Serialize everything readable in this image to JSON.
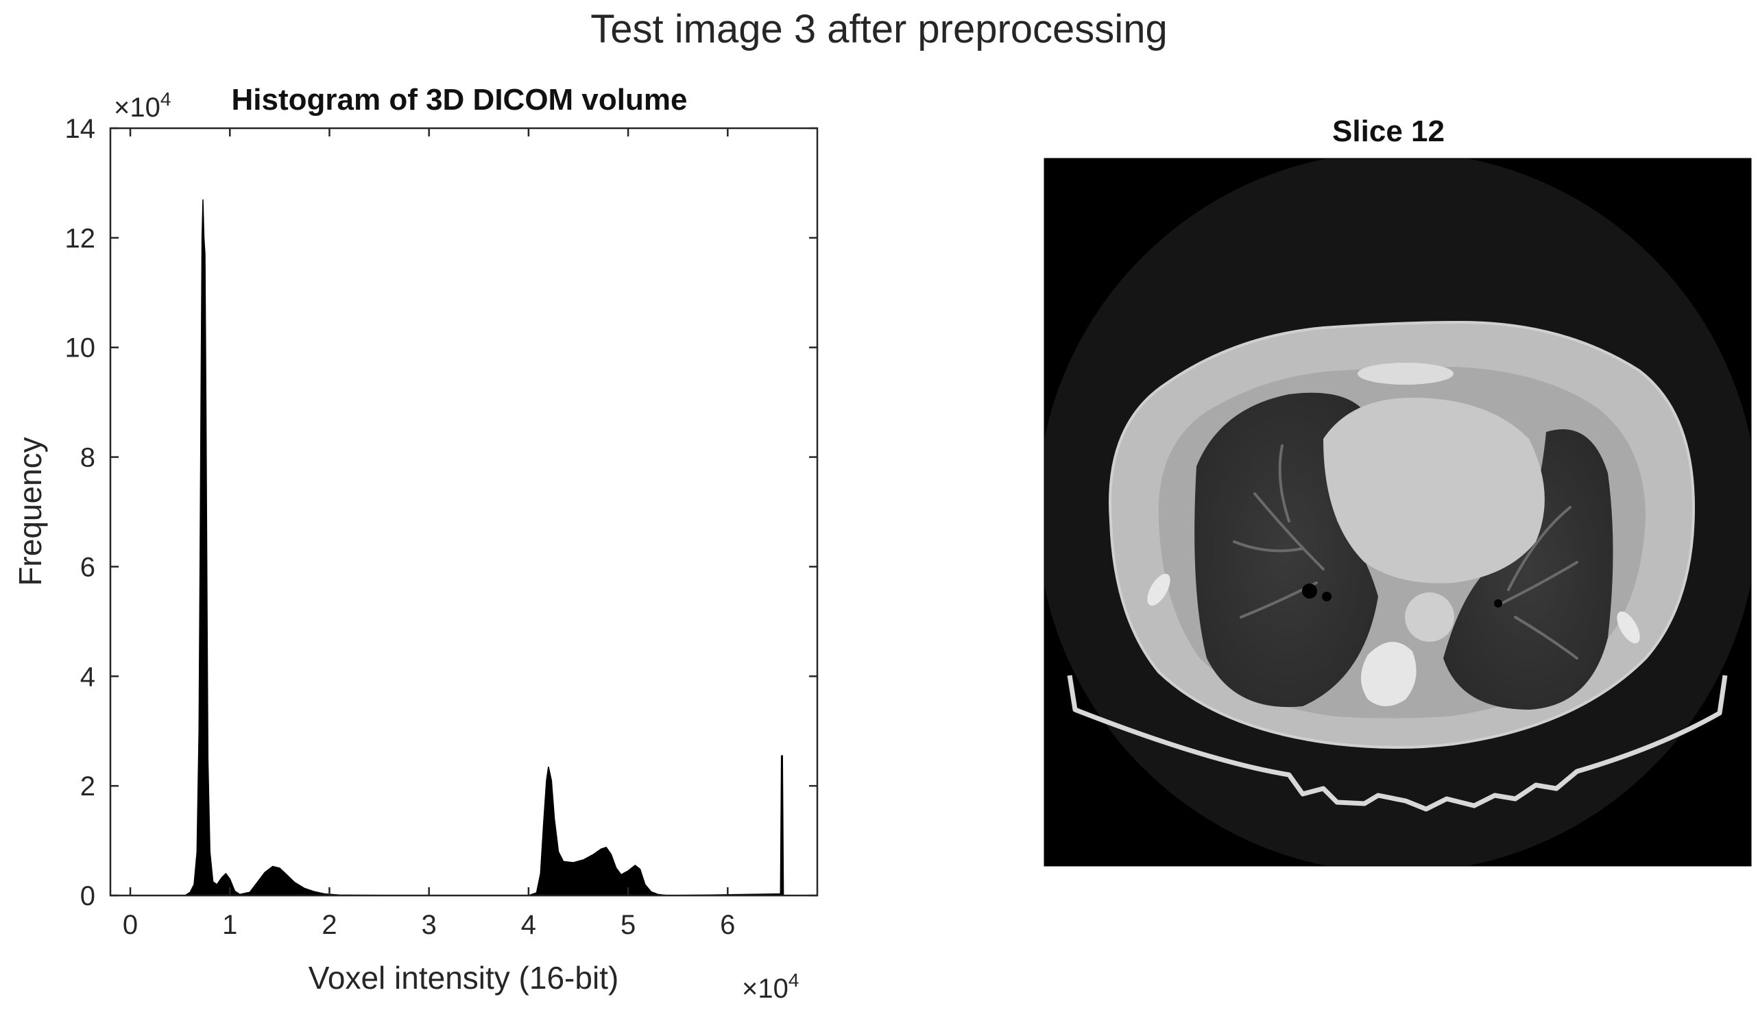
{
  "figure": {
    "suptitle": "Test image 3 after preprocessing"
  },
  "chart_data": [
    {
      "type": "bar",
      "title": "Histogram of 3D DICOM volume",
      "xlabel": "Voxel intensity (16-bit)",
      "ylabel": "Frequency",
      "xlim": [
        -2000,
        69000
      ],
      "ylim": [
        0,
        140000
      ],
      "x_ticks": [
        0,
        10000,
        20000,
        30000,
        40000,
        50000,
        60000
      ],
      "x_tick_labels": [
        "0",
        "1",
        "2",
        "3",
        "4",
        "5",
        "6"
      ],
      "y_ticks": [
        0,
        20000,
        40000,
        60000,
        80000,
        100000,
        120000,
        140000
      ],
      "y_tick_labels": [
        "0",
        "2",
        "4",
        "6",
        "8",
        "10",
        "12",
        "14"
      ],
      "x_exponent_label": "×10",
      "x_exponent": "4",
      "y_exponent_label": "×10",
      "y_exponent": "4",
      "bar_color": "#000000",
      "points": [
        [
          5500,
          0
        ],
        [
          6000,
          600
        ],
        [
          6400,
          2000
        ],
        [
          6700,
          8000
        ],
        [
          6900,
          30000
        ],
        [
          7000,
          60000
        ],
        [
          7100,
          90000
        ],
        [
          7200,
          120000
        ],
        [
          7300,
          127000
        ],
        [
          7400,
          120000
        ],
        [
          7500,
          117000
        ],
        [
          7600,
          90000
        ],
        [
          7700,
          55000
        ],
        [
          7800,
          25000
        ],
        [
          8000,
          8000
        ],
        [
          8300,
          2500
        ],
        [
          8700,
          2000
        ],
        [
          9200,
          3300
        ],
        [
          9600,
          4000
        ],
        [
          10000,
          3000
        ],
        [
          10500,
          800
        ],
        [
          11000,
          200
        ],
        [
          12000,
          600
        ],
        [
          12800,
          2500
        ],
        [
          13500,
          4200
        ],
        [
          14300,
          5300
        ],
        [
          15000,
          5000
        ],
        [
          15700,
          3800
        ],
        [
          16500,
          2400
        ],
        [
          17500,
          1300
        ],
        [
          18500,
          700
        ],
        [
          19500,
          300
        ],
        [
          21000,
          100
        ],
        [
          24000,
          50
        ],
        [
          28000,
          0
        ],
        [
          40000,
          0
        ],
        [
          40800,
          500
        ],
        [
          41200,
          4000
        ],
        [
          41500,
          13000
        ],
        [
          41800,
          21000
        ],
        [
          42000,
          23500
        ],
        [
          42300,
          21000
        ],
        [
          42600,
          14000
        ],
        [
          43000,
          8000
        ],
        [
          43500,
          6200
        ],
        [
          44500,
          6000
        ],
        [
          45500,
          6500
        ],
        [
          46500,
          7500
        ],
        [
          47300,
          8500
        ],
        [
          47800,
          8800
        ],
        [
          48300,
          7500
        ],
        [
          48800,
          5000
        ],
        [
          49300,
          3800
        ],
        [
          50000,
          4500
        ],
        [
          50700,
          5500
        ],
        [
          51200,
          4800
        ],
        [
          51700,
          2000
        ],
        [
          52300,
          700
        ],
        [
          53000,
          200
        ],
        [
          54000,
          0
        ],
        [
          58000,
          100
        ],
        [
          62000,
          200
        ],
        [
          65300,
          300
        ],
        [
          65400,
          25500
        ],
        [
          65500,
          25500
        ],
        [
          65600,
          0
        ]
      ]
    },
    {
      "type": "image",
      "title": "Slice 12"
    }
  ]
}
